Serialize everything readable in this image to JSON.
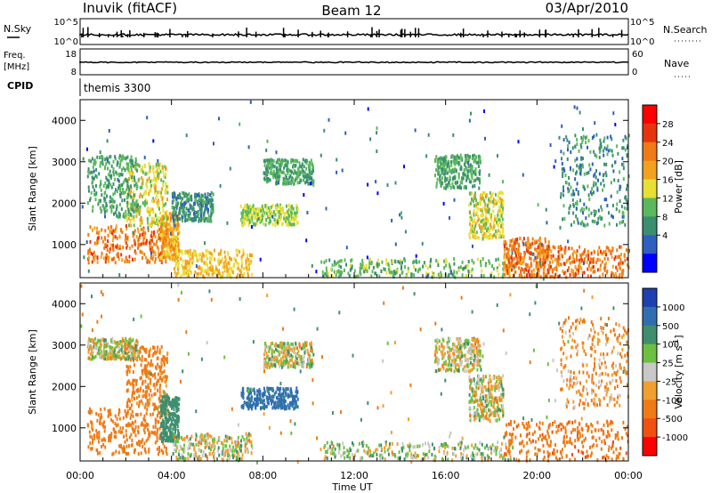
{
  "header": {
    "station": "Inuvik (fitACF)",
    "beam": "Beam 12",
    "date": "03/Apr/2010"
  },
  "panels": {
    "nsky": {
      "label": "N.Sky",
      "ticks": [
        "10^5",
        "10^0"
      ],
      "right_label": "N.Search",
      "right_ticks": [
        "10^5",
        "10^0"
      ]
    },
    "freq": {
      "label_line1": "Freq.",
      "label_line2": "[MHz]",
      "ticks": [
        "18",
        "8"
      ],
      "right_label": "Nave",
      "right_ticks": [
        "60",
        "0"
      ]
    },
    "cpid": {
      "label": "CPID",
      "value": "themis 3300"
    }
  },
  "chart_data": [
    {
      "type": "heatmap",
      "quantity": "Power",
      "ylabel": "Slant Range [km]",
      "xlabel": "Time UT",
      "x_ticks": [
        "00:00",
        "04:00",
        "08:00",
        "12:00",
        "16:00",
        "20:00",
        "00:00"
      ],
      "y_ticks": [
        1000,
        2000,
        3000,
        4000
      ],
      "ylim": [
        200,
        4500
      ],
      "xlim_hours": [
        0,
        24
      ],
      "colorbar_label": "Power [dB]",
      "colorbar_ticks": [
        4,
        8,
        12,
        16,
        20,
        24,
        28
      ],
      "colorbar_colors": [
        "#0000ff",
        "#2f5fc0",
        "#3a8f6e",
        "#5cb85c",
        "#e8e034",
        "#f2a21e",
        "#f07a14",
        "#e8340c",
        "#ff0000"
      ],
      "regions": [
        {
          "t": [
            0.3,
            3.8
          ],
          "r": [
            600,
            1500
          ],
          "v": 26
        },
        {
          "t": [
            3.5,
            4.3
          ],
          "r": [
            700,
            1800
          ],
          "v": 22
        },
        {
          "t": [
            2.0,
            3.8
          ],
          "r": [
            1500,
            3000
          ],
          "v": 18
        },
        {
          "t": [
            0.3,
            2.5
          ],
          "r": [
            1700,
            3200
          ],
          "v": 12
        },
        {
          "t": [
            4.0,
            7.5
          ],
          "r": [
            250,
            900
          ],
          "v": 20
        },
        {
          "t": [
            4.0,
            5.8
          ],
          "r": [
            1600,
            2300
          ],
          "v": 10
        },
        {
          "t": [
            7.0,
            9.5
          ],
          "r": [
            1500,
            2000
          ],
          "v": 16
        },
        {
          "t": [
            8.0,
            10.2
          ],
          "r": [
            2500,
            3100
          ],
          "v": 12
        },
        {
          "t": [
            10.5,
            19.0
          ],
          "r": [
            250,
            700
          ],
          "v": 14
        },
        {
          "t": [
            15.5,
            17.5
          ],
          "r": [
            2400,
            3200
          ],
          "v": 12
        },
        {
          "t": [
            17.0,
            18.5
          ],
          "r": [
            1200,
            2300
          ],
          "v": 18
        },
        {
          "t": [
            18.5,
            20.5
          ],
          "r": [
            250,
            1200
          ],
          "v": 26
        },
        {
          "t": [
            20.0,
            24.0
          ],
          "r": [
            250,
            1000
          ],
          "v": 26
        },
        {
          "t": [
            21.0,
            24.0
          ],
          "r": [
            1500,
            3700
          ],
          "v": 10
        }
      ]
    },
    {
      "type": "heatmap",
      "quantity": "Velocity",
      "ylabel": "Slant Range [km]",
      "xlabel": "Time UT",
      "x_ticks": [
        "00:00",
        "04:00",
        "08:00",
        "12:00",
        "16:00",
        "20:00",
        "00:00"
      ],
      "y_ticks": [
        1000,
        2000,
        3000,
        4000
      ],
      "ylim": [
        200,
        4500
      ],
      "xlim_hours": [
        0,
        24
      ],
      "colorbar_label": "Velocity [m s^-1]",
      "colorbar_ticks": [
        1000,
        500,
        100,
        25,
        -25,
        -100,
        -500,
        -1000
      ],
      "colorbar_colors": [
        "#1e3fb0",
        "#2f6fb0",
        "#3f8f6f",
        "#6cc040",
        "#c8c8c8",
        "#f0a030",
        "#f07a14",
        "#f05010",
        "#ff0000"
      ],
      "regions": [
        {
          "t": [
            0.3,
            3.8
          ],
          "r": [
            400,
            1500
          ],
          "v": -300
        },
        {
          "t": [
            2.0,
            3.8
          ],
          "r": [
            1500,
            3000
          ],
          "v": -200
        },
        {
          "t": [
            0.3,
            2.5
          ],
          "r": [
            2700,
            3200
          ],
          "v": 0
        },
        {
          "t": [
            3.5,
            4.3
          ],
          "r": [
            700,
            1800
          ],
          "v": 300
        },
        {
          "t": [
            4.0,
            7.5
          ],
          "r": [
            250,
            900
          ],
          "v": 10
        },
        {
          "t": [
            7.0,
            9.5
          ],
          "r": [
            1500,
            2000
          ],
          "v": 600
        },
        {
          "t": [
            8.0,
            10.2
          ],
          "r": [
            2500,
            3100
          ],
          "v": 0
        },
        {
          "t": [
            10.5,
            19.0
          ],
          "r": [
            250,
            700
          ],
          "v": 50
        },
        {
          "t": [
            15.5,
            17.5
          ],
          "r": [
            2400,
            3200
          ],
          "v": 0
        },
        {
          "t": [
            17.0,
            18.5
          ],
          "r": [
            1200,
            2300
          ],
          "v": 0
        },
        {
          "t": [
            18.5,
            24.0
          ],
          "r": [
            250,
            1200
          ],
          "v": -400
        },
        {
          "t": [
            21.0,
            24.0
          ],
          "r": [
            1500,
            3700
          ],
          "v": -100
        }
      ]
    }
  ]
}
